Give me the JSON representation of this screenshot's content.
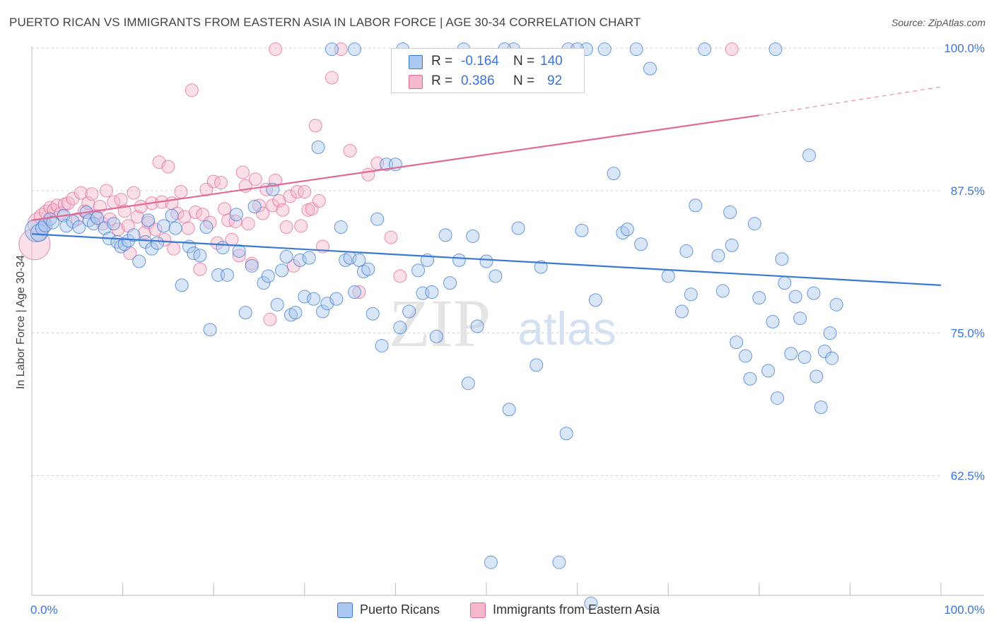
{
  "title": "PUERTO RICAN VS IMMIGRANTS FROM EASTERN ASIA IN LABOR FORCE | AGE 30-34 CORRELATION CHART",
  "source": "Source: ZipAtlas.com",
  "watermark": {
    "zip": "ZIP",
    "atlas": "atlas"
  },
  "colors": {
    "blue": "#3a78d4",
    "blue_fill": "#aac8f0",
    "pink": "#e06a95",
    "pink_fill": "#f5b8cc",
    "grid": "#cccccc",
    "tick_text": "#3b74d8"
  },
  "legend": {
    "rows": [
      {
        "r_label": "R =",
        "r_value": "-0.164",
        "n_label": "N =",
        "n_value": "140"
      },
      {
        "r_label": "R =",
        "r_value": "0.386",
        "n_label": "N =",
        "n_value": "92"
      }
    ]
  },
  "bottom_legend": [
    {
      "label": "Puerto Ricans"
    },
    {
      "label": "Immigrants from Eastern Asia"
    }
  ],
  "chart_data": {
    "type": "scatter",
    "title": "PUERTO RICAN VS IMMIGRANTS FROM EASTERN ASIA IN LABOR FORCE | AGE 30-34 CORRELATION CHART",
    "xlabel": "",
    "ylabel": "In Labor Force | Age 30-34",
    "xlim": [
      0,
      100
    ],
    "ylim": [
      52,
      100.5
    ],
    "x_tick_labels": [
      "0.0%",
      "100.0%"
    ],
    "y_ticks": [
      {
        "value": 100,
        "label": "100.0%"
      },
      {
        "value": 87.5,
        "label": "87.5%"
      },
      {
        "value": 75,
        "label": "75.0%"
      },
      {
        "value": 62.5,
        "label": "62.5%"
      }
    ],
    "series": [
      {
        "name": "Puerto Ricans",
        "color": "#3a78d4",
        "r": -0.164,
        "n": 140,
        "trend": {
          "x0": 0,
          "y0": 83.7,
          "x1": 100,
          "y1": 79.2
        },
        "points": [
          [
            0.5,
            84.0,
            16
          ],
          [
            0.8,
            83.8,
            12
          ],
          [
            1.2,
            84.2,
            10
          ],
          [
            1.5,
            84.5,
            10
          ],
          [
            2.0,
            85.0,
            9
          ],
          [
            2.3,
            84.7,
            9
          ],
          [
            3.5,
            85.3,
            9
          ],
          [
            3.8,
            84.4,
            9
          ],
          [
            4.5,
            84.8,
            9
          ],
          [
            5.2,
            84.3,
            9
          ],
          [
            6.0,
            85.6,
            9
          ],
          [
            6.3,
            84.9,
            9
          ],
          [
            6.8,
            84.6,
            9
          ],
          [
            7.2,
            85.1,
            9
          ],
          [
            8.0,
            84.2,
            9
          ],
          [
            8.5,
            83.3,
            9
          ],
          [
            9.0,
            84.6,
            9
          ],
          [
            9.4,
            83.0,
            9
          ],
          [
            9.8,
            82.6,
            9
          ],
          [
            10.2,
            82.8,
            9
          ],
          [
            10.6,
            83.1,
            9
          ],
          [
            11.2,
            83.6,
            9
          ],
          [
            11.8,
            81.3,
            9
          ],
          [
            12.5,
            83.0,
            9
          ],
          [
            12.8,
            84.9,
            9
          ],
          [
            13.2,
            82.4,
            9
          ],
          [
            13.8,
            82.9,
            9
          ],
          [
            14.5,
            84.4,
            9
          ],
          [
            15.4,
            85.3,
            9
          ],
          [
            15.8,
            84.2,
            9
          ],
          [
            16.5,
            79.2,
            9
          ],
          [
            17.3,
            82.6,
            9
          ],
          [
            17.8,
            82.0,
            9
          ],
          [
            18.5,
            81.8,
            9
          ],
          [
            19.2,
            84.3,
            9
          ],
          [
            19.6,
            75.3,
            9
          ],
          [
            20.5,
            80.1,
            9
          ],
          [
            21.0,
            82.5,
            9
          ],
          [
            21.5,
            80.1,
            9
          ],
          [
            22.5,
            85.4,
            9
          ],
          [
            22.8,
            82.2,
            9
          ],
          [
            23.5,
            76.8,
            9
          ],
          [
            24.2,
            80.9,
            9
          ],
          [
            24.5,
            86.1,
            9
          ],
          [
            25.5,
            79.4,
            9
          ],
          [
            26.0,
            80.0,
            9
          ],
          [
            26.5,
            87.6,
            9
          ],
          [
            27.0,
            77.5,
            9
          ],
          [
            27.5,
            80.5,
            9
          ],
          [
            28.0,
            81.7,
            9
          ],
          [
            28.5,
            76.6,
            9
          ],
          [
            29.0,
            76.8,
            9
          ],
          [
            29.5,
            81.4,
            9
          ],
          [
            30.0,
            78.2,
            9
          ],
          [
            30.5,
            81.6,
            9
          ],
          [
            31.0,
            78.0,
            9
          ],
          [
            31.5,
            91.3,
            9
          ],
          [
            32.0,
            76.9,
            9
          ],
          [
            32.5,
            77.6,
            9
          ],
          [
            33.5,
            78.0,
            9
          ],
          [
            34.0,
            84.3,
            9
          ],
          [
            34.5,
            81.4,
            9
          ],
          [
            35.0,
            81.6,
            9
          ],
          [
            35.5,
            78.6,
            9
          ],
          [
            36.0,
            81.4,
            9
          ],
          [
            36.5,
            80.4,
            9
          ],
          [
            37.0,
            80.6,
            9
          ],
          [
            37.5,
            76.7,
            9
          ],
          [
            38.0,
            85.0,
            9
          ],
          [
            38.5,
            73.9,
            9
          ],
          [
            39.0,
            89.8,
            9
          ],
          [
            40.0,
            89.8,
            9
          ],
          [
            40.5,
            75.5,
            9
          ],
          [
            41.5,
            76.9,
            9
          ],
          [
            42.5,
            80.5,
            9
          ],
          [
            43.0,
            78.5,
            9
          ],
          [
            43.5,
            81.4,
            9
          ],
          [
            44.0,
            78.6,
            9
          ],
          [
            44.5,
            74.7,
            9
          ],
          [
            45.5,
            83.6,
            9
          ],
          [
            46.0,
            79.4,
            9
          ],
          [
            47.0,
            81.4,
            9
          ],
          [
            48.0,
            70.6,
            9
          ],
          [
            48.5,
            83.5,
            9
          ],
          [
            49.0,
            75.6,
            9
          ],
          [
            50.0,
            81.3,
            9
          ],
          [
            50.5,
            54.9,
            9
          ],
          [
            51.0,
            80.0,
            9
          ],
          [
            52.5,
            68.3,
            9
          ],
          [
            53.5,
            84.2,
            9
          ],
          [
            55.5,
            72.2,
            9
          ],
          [
            56.0,
            80.8,
            9
          ],
          [
            58.0,
            54.9,
            9
          ],
          [
            58.8,
            66.2,
            9
          ],
          [
            60.5,
            84.0,
            9
          ],
          [
            61.0,
            99.9,
            9
          ],
          [
            61.5,
            51.3,
            9
          ],
          [
            62.0,
            77.9,
            9
          ],
          [
            65.0,
            83.8,
            9
          ],
          [
            67.0,
            82.8,
            9
          ],
          [
            68.0,
            98.2,
            9
          ],
          [
            70.0,
            80.0,
            9
          ],
          [
            72.0,
            82.2,
            9
          ],
          [
            72.5,
            78.4,
            9
          ],
          [
            74.0,
            99.9,
            9
          ],
          [
            75.5,
            81.8,
            9
          ],
          [
            76.0,
            78.7,
            9
          ],
          [
            76.8,
            85.6,
            9
          ],
          [
            77.0,
            82.7,
            9
          ],
          [
            77.5,
            74.2,
            9
          ],
          [
            78.5,
            73.0,
            9
          ],
          [
            79.0,
            71.0,
            9
          ],
          [
            79.5,
            84.6,
            9
          ],
          [
            80.0,
            78.1,
            9
          ],
          [
            81.0,
            71.7,
            9
          ],
          [
            81.5,
            76.0,
            9
          ],
          [
            82.0,
            69.3,
            9
          ],
          [
            82.5,
            81.5,
            9
          ],
          [
            82.8,
            79.4,
            9
          ],
          [
            83.5,
            73.2,
            9
          ],
          [
            84.0,
            78.2,
            9
          ],
          [
            84.5,
            76.3,
            9
          ],
          [
            85.0,
            72.9,
            9
          ],
          [
            85.5,
            90.6,
            9
          ],
          [
            86.0,
            78.5,
            9
          ],
          [
            86.3,
            71.2,
            9
          ],
          [
            86.8,
            68.5,
            9
          ],
          [
            87.2,
            73.4,
            9
          ],
          [
            87.8,
            75.0,
            9
          ],
          [
            88.0,
            72.8,
            9
          ],
          [
            88.5,
            77.5,
            9
          ],
          [
            71.5,
            76.9,
            9
          ],
          [
            64.0,
            89.0,
            9
          ],
          [
            59.0,
            99.9,
            9
          ],
          [
            63.0,
            99.9,
            9
          ],
          [
            53.0,
            99.9,
            9
          ],
          [
            47.5,
            99.9,
            9
          ],
          [
            35.5,
            99.9,
            9
          ],
          [
            40.8,
            99.9,
            9
          ],
          [
            66.5,
            99.9,
            9
          ],
          [
            81.8,
            99.9,
            9
          ],
          [
            60.0,
            99.9,
            9
          ],
          [
            52.0,
            99.9,
            9
          ],
          [
            33.0,
            99.9,
            9
          ],
          [
            65.5,
            84.1,
            9
          ],
          [
            73.0,
            86.2,
            9
          ]
        ]
      },
      {
        "name": "Immigrants from Eastern Asia",
        "color": "#e06a95",
        "r": 0.386,
        "n": 92,
        "trend": {
          "x0": 0,
          "y0": 84.9,
          "x1": 80,
          "y1": 94.1,
          "dash_x1": 100,
          "dash_y1": 96.6
        },
        "points": [
          [
            0.3,
            82.8,
            22
          ],
          [
            0.8,
            84.6,
            16
          ],
          [
            1.2,
            85.2,
            12
          ],
          [
            1.6,
            85.6,
            10
          ],
          [
            2.0,
            86.0,
            9
          ],
          [
            2.4,
            85.8,
            9
          ],
          [
            2.8,
            86.2,
            9
          ],
          [
            3.2,
            85.5,
            9
          ],
          [
            3.6,
            86.3,
            9
          ],
          [
            4.0,
            86.4,
            9
          ],
          [
            4.5,
            86.8,
            9
          ],
          [
            5.0,
            85.0,
            9
          ],
          [
            5.4,
            87.3,
            9
          ],
          [
            5.8,
            85.7,
            9
          ],
          [
            6.2,
            86.4,
            9
          ],
          [
            6.6,
            87.2,
            9
          ],
          [
            7.0,
            85.3,
            9
          ],
          [
            7.5,
            86.1,
            9
          ],
          [
            7.8,
            84.6,
            9
          ],
          [
            8.2,
            87.5,
            9
          ],
          [
            8.6,
            85.0,
            9
          ],
          [
            9.0,
            86.5,
            9
          ],
          [
            9.5,
            84.1,
            9
          ],
          [
            9.8,
            86.7,
            9
          ],
          [
            10.2,
            85.7,
            9
          ],
          [
            10.6,
            84.4,
            9
          ],
          [
            10.8,
            82.0,
            9
          ],
          [
            11.2,
            87.3,
            9
          ],
          [
            11.6,
            85.2,
            9
          ],
          [
            12.0,
            86.1,
            9
          ],
          [
            12.4,
            83.8,
            9
          ],
          [
            12.8,
            84.7,
            9
          ],
          [
            13.2,
            86.4,
            9
          ],
          [
            13.6,
            84.1,
            9
          ],
          [
            14.0,
            90.0,
            9
          ],
          [
            14.3,
            86.5,
            9
          ],
          [
            14.6,
            83.2,
            9
          ],
          [
            15.0,
            89.6,
            9
          ],
          [
            15.4,
            86.4,
            9
          ],
          [
            15.6,
            82.4,
            9
          ],
          [
            16.0,
            85.5,
            9
          ],
          [
            16.4,
            87.4,
            9
          ],
          [
            16.8,
            85.2,
            9
          ],
          [
            17.2,
            84.2,
            9
          ],
          [
            17.6,
            96.3,
            9
          ],
          [
            18.0,
            85.6,
            9
          ],
          [
            18.5,
            80.6,
            9
          ],
          [
            18.8,
            85.4,
            9
          ],
          [
            19.2,
            87.6,
            9
          ],
          [
            19.6,
            84.7,
            9
          ],
          [
            20.0,
            88.3,
            9
          ],
          [
            20.4,
            82.9,
            9
          ],
          [
            20.8,
            88.2,
            9
          ],
          [
            21.2,
            85.9,
            9
          ],
          [
            21.6,
            84.9,
            9
          ],
          [
            22.0,
            83.2,
            9
          ],
          [
            22.4,
            84.8,
            9
          ],
          [
            22.8,
            81.8,
            9
          ],
          [
            23.2,
            89.1,
            9
          ],
          [
            23.5,
            87.9,
            9
          ],
          [
            23.8,
            84.6,
            9
          ],
          [
            24.2,
            81.1,
            9
          ],
          [
            24.6,
            88.5,
            9
          ],
          [
            25.0,
            86.2,
            9
          ],
          [
            25.4,
            85.5,
            9
          ],
          [
            25.8,
            87.6,
            9
          ],
          [
            26.2,
            76.2,
            9
          ],
          [
            26.5,
            86.2,
            9
          ],
          [
            26.8,
            88.4,
            9
          ],
          [
            27.2,
            86.6,
            9
          ],
          [
            27.6,
            85.8,
            9
          ],
          [
            28.0,
            84.3,
            9
          ],
          [
            28.4,
            87.0,
            9
          ],
          [
            28.8,
            80.9,
            9
          ],
          [
            29.2,
            87.4,
            9
          ],
          [
            29.6,
            84.4,
            9
          ],
          [
            30.0,
            87.4,
            9
          ],
          [
            30.4,
            85.8,
            9
          ],
          [
            30.8,
            85.9,
            9
          ],
          [
            31.2,
            93.2,
            9
          ],
          [
            31.6,
            86.6,
            9
          ],
          [
            32.0,
            82.6,
            9
          ],
          [
            33.0,
            97.4,
            9
          ],
          [
            34.0,
            99.9,
            9
          ],
          [
            35.0,
            91.0,
            9
          ],
          [
            36.0,
            78.6,
            9
          ],
          [
            37.0,
            88.9,
            9
          ],
          [
            38.0,
            89.9,
            9
          ],
          [
            39.5,
            83.4,
            9
          ],
          [
            40.5,
            80.0,
            9
          ],
          [
            26.8,
            99.9,
            9
          ],
          [
            77.0,
            99.9,
            9
          ]
        ]
      }
    ]
  }
}
